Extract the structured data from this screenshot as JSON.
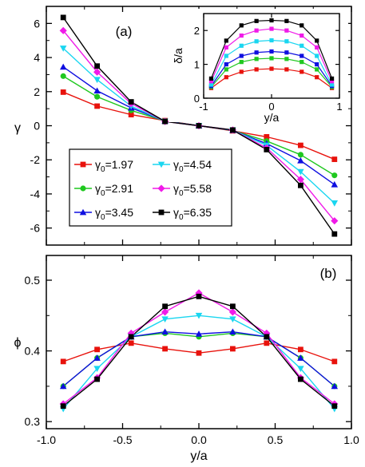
{
  "chart_data": [
    {
      "panel_label": "(a)",
      "type": "line",
      "xlabel": "",
      "ylabel": "γ",
      "xlim": [
        -1.0,
        1.0
      ],
      "ylim": [
        -7,
        7
      ],
      "yticks": [
        "6",
        "4",
        "2",
        "0",
        "-2",
        "-4",
        "-6"
      ],
      "ytick_values": [
        6,
        4,
        2,
        0,
        -2,
        -4,
        -6
      ],
      "xtick_values": [
        -1.0,
        -0.5,
        0.0,
        0.5,
        1.0
      ],
      "x": [
        -0.889,
        -0.667,
        -0.444,
        -0.222,
        0.0,
        0.222,
        0.444,
        0.667,
        0.889
      ],
      "legend_placement": "lower-left",
      "series": [
        {
          "name": "γ0=1.97",
          "legend_main": "γ",
          "legend_sub": "0",
          "legend_value": "=1.97",
          "color": "#e8120c",
          "marker": "square",
          "values": [
            1.97,
            1.15,
            0.65,
            0.3,
            0.0,
            -0.3,
            -0.65,
            -1.15,
            -1.97
          ]
        },
        {
          "name": "γ0=2.91",
          "legend_main": "γ",
          "legend_sub": "0",
          "legend_value": "=2.91",
          "color": "#1fc81f",
          "marker": "circle",
          "values": [
            2.91,
            1.7,
            0.9,
            0.28,
            0.0,
            -0.28,
            -0.9,
            -1.7,
            -2.91
          ]
        },
        {
          "name": "γ0=3.45",
          "legend_main": "γ",
          "legend_sub": "0",
          "legend_value": "=3.45",
          "color": "#0f0fe0",
          "marker": "triangle-up",
          "values": [
            3.45,
            2.05,
            1.05,
            0.27,
            0.0,
            -0.27,
            -1.05,
            -2.05,
            -3.45
          ]
        },
        {
          "name": "γ0=4.54",
          "legend_main": "γ",
          "legend_sub": "0",
          "legend_value": "=4.54",
          "color": "#1ad6f0",
          "marker": "triangle-down",
          "values": [
            4.54,
            2.7,
            1.15,
            0.26,
            0.0,
            -0.26,
            -1.15,
            -2.7,
            -4.54
          ]
        },
        {
          "name": "γ0=5.58",
          "legend_main": "γ",
          "legend_sub": "0",
          "legend_value": "=5.58",
          "color": "#f01ae8",
          "marker": "diamond",
          "values": [
            5.58,
            3.15,
            1.3,
            0.25,
            0.0,
            -0.25,
            -1.3,
            -3.15,
            -5.58
          ]
        },
        {
          "name": "γ0=6.35",
          "legend_main": "γ",
          "legend_sub": "0",
          "legend_value": "=6.35",
          "color": "#000000",
          "marker": "square",
          "values": [
            6.35,
            3.5,
            1.4,
            0.25,
            0.0,
            -0.25,
            -1.4,
            -3.5,
            -6.35
          ]
        }
      ],
      "inset": {
        "type": "line",
        "xlabel": "y/a",
        "ylabel": "δ/a",
        "xlim": [
          -1,
          1
        ],
        "ylim": [
          0,
          2.5
        ],
        "xticks": [
          "-1",
          "0",
          "1"
        ],
        "xtick_values": [
          -1,
          0,
          1
        ],
        "yticks": [
          "0",
          "1",
          "2"
        ],
        "ytick_values": [
          0,
          1,
          2
        ],
        "x": [
          -0.889,
          -0.667,
          -0.444,
          -0.222,
          0.0,
          0.222,
          0.444,
          0.667,
          0.889
        ],
        "series": [
          {
            "name": "γ0=1.97",
            "values": [
              0.3,
              0.62,
              0.78,
              0.85,
              0.87,
              0.85,
              0.78,
              0.62,
              0.3
            ]
          },
          {
            "name": "γ0=2.91",
            "values": [
              0.33,
              0.85,
              1.07,
              1.16,
              1.18,
              1.16,
              1.07,
              0.85,
              0.33
            ]
          },
          {
            "name": "γ0=3.45",
            "values": [
              0.36,
              1.0,
              1.25,
              1.35,
              1.38,
              1.35,
              1.25,
              1.0,
              0.36
            ]
          },
          {
            "name": "γ0=4.54",
            "values": [
              0.4,
              1.25,
              1.55,
              1.68,
              1.71,
              1.68,
              1.55,
              1.25,
              0.4
            ]
          },
          {
            "name": "γ0=5.58",
            "values": [
              0.5,
              1.5,
              1.85,
              2.0,
              2.05,
              2.0,
              1.85,
              1.5,
              0.5
            ]
          },
          {
            "name": "γ0=6.35",
            "values": [
              0.58,
              1.7,
              2.15,
              2.28,
              2.3,
              2.28,
              2.15,
              1.7,
              0.58
            ]
          }
        ]
      }
    },
    {
      "panel_label": "(b)",
      "type": "line",
      "xlabel": "y/a",
      "ylabel": "ϕ",
      "xlim": [
        -1.0,
        1.0
      ],
      "ylim": [
        0.29,
        0.535
      ],
      "xticks": [
        "-1.0",
        "-0.5",
        "0.0",
        "0.5",
        "1.0"
      ],
      "xtick_values": [
        -1.0,
        -0.5,
        0.0,
        0.5,
        1.0
      ],
      "yticks": [
        "0.5",
        "0.4",
        "0.3"
      ],
      "ytick_values": [
        0.5,
        0.4,
        0.3
      ],
      "x": [
        -0.889,
        -0.667,
        -0.444,
        -0.222,
        0.0,
        0.222,
        0.444,
        0.667,
        0.889
      ],
      "series": [
        {
          "name": "γ0=1.97",
          "values": [
            0.385,
            0.402,
            0.411,
            0.403,
            0.397,
            0.403,
            0.411,
            0.402,
            0.385
          ]
        },
        {
          "name": "γ0=2.91",
          "values": [
            0.35,
            0.39,
            0.42,
            0.425,
            0.42,
            0.425,
            0.42,
            0.39,
            0.35
          ]
        },
        {
          "name": "γ0=3.45",
          "values": [
            0.35,
            0.39,
            0.42,
            0.427,
            0.424,
            0.427,
            0.42,
            0.39,
            0.35
          ]
        },
        {
          "name": "γ0=4.54",
          "values": [
            0.318,
            0.375,
            0.42,
            0.445,
            0.45,
            0.445,
            0.42,
            0.375,
            0.318
          ]
        },
        {
          "name": "γ0=5.58",
          "values": [
            0.325,
            0.362,
            0.425,
            0.455,
            0.482,
            0.455,
            0.425,
            0.362,
            0.325
          ]
        },
        {
          "name": "γ0=6.35",
          "values": [
            0.322,
            0.36,
            0.42,
            0.463,
            0.477,
            0.463,
            0.42,
            0.36,
            0.322
          ]
        }
      ]
    }
  ]
}
